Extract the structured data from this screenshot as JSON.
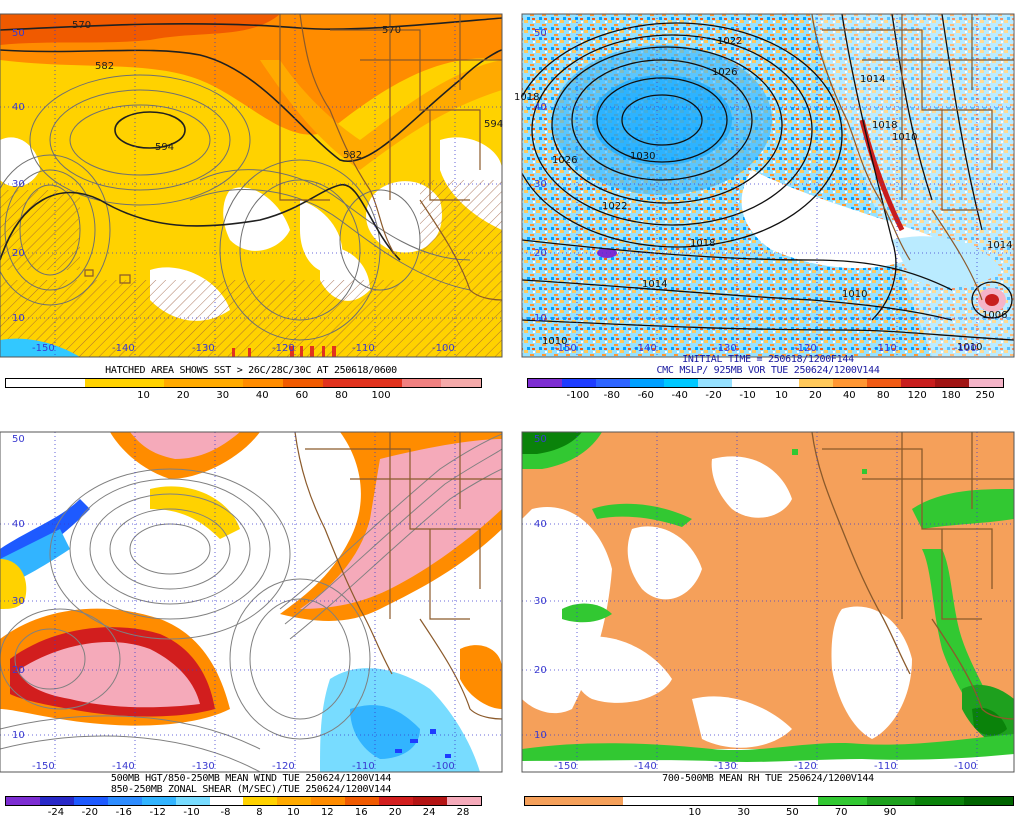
{
  "panels": [
    {
      "id": "sst-height",
      "caption_lines": [
        "HATCHED AREA SHOWS SST > 26C/28C/30C AT 250618/0600"
      ],
      "caption_color": "#000000",
      "scale_labels": [
        "10",
        "20",
        "30",
        "40",
        "60",
        "80",
        "100"
      ],
      "scale_colors": [
        "#ffffff",
        "#ffffff",
        "#ffd200",
        "#ffd200",
        "#ffaa00",
        "#ffaa00",
        "#ff8c00",
        "#f05a00",
        "#e1321e",
        "#e1321e",
        "#f08080",
        "#f5aaaa"
      ],
      "lat_labels": [
        "50",
        "40",
        "30",
        "20",
        "10"
      ],
      "lon_labels": [
        "-150",
        "-140",
        "-130",
        "-120",
        "-110",
        "-100"
      ],
      "contour_labels": [
        "570",
        "582",
        "594",
        "582",
        "570",
        "594",
        "582"
      ]
    },
    {
      "id": "mslp-vort",
      "caption_lines": [
        "INITIAL TIME = 250618/1200F144",
        "CMC MSLP/ 925MB VOR TUE 250624/1200V144"
      ],
      "caption_color": "#1a1aa0",
      "scale_labels": [
        "-100",
        "-80",
        "-60",
        "-40",
        "-20",
        "-10",
        "10",
        "20",
        "40",
        "80",
        "120",
        "180",
        "250"
      ],
      "scale_colors": [
        "#7d2dd2",
        "#1e3cff",
        "#2d64ff",
        "#00a0ff",
        "#00c8ff",
        "#96e1ff",
        "#ffffff",
        "#ffffff",
        "#ffc85a",
        "#ff9632",
        "#f05a14",
        "#c81e1e",
        "#a01414",
        "#f5b4c8"
      ],
      "lat_labels": [
        "50",
        "40",
        "30",
        "20",
        "10"
      ],
      "lon_labels": [
        "-150",
        "-140",
        "-130",
        "-120",
        "-110",
        "-100"
      ],
      "contour_labels": [
        "1022",
        "1026",
        "1030",
        "1026",
        "1022",
        "1018",
        "1014",
        "1010",
        "1014",
        "1018",
        "1010",
        "1006",
        "1014",
        "1010",
        "1010",
        "1018"
      ]
    },
    {
      "id": "zonal-shear",
      "caption_lines": [
        "500MB HGT/850-250MB MEAN WIND TUE 250624/1200V144",
        "850-250MB ZONAL SHEAR (M/SEC)/TUE 250624/1200V144"
      ],
      "caption_color": "#000000",
      "scale_labels": [
        "-24",
        "-20",
        "-16",
        "-12",
        "-10",
        "-8",
        "8",
        "10",
        "12",
        "16",
        "20",
        "24",
        "28"
      ],
      "scale_colors": [
        "#7d2dd2",
        "#2828c8",
        "#1e5aff",
        "#2d8cff",
        "#32b4ff",
        "#78dcff",
        "#ffffff",
        "#ffd200",
        "#ffaa00",
        "#ff8c00",
        "#f05a00",
        "#d21e1e",
        "#b41414",
        "#f5aaba"
      ],
      "lat_labels": [
        "50",
        "40",
        "30",
        "20",
        "10"
      ],
      "lon_labels": [
        "-150",
        "-140",
        "-130",
        "-120",
        "-110",
        "-100"
      ],
      "contour_labels": []
    },
    {
      "id": "mean-rh",
      "caption_lines": [
        "700-500MB MEAN RH TUE 250624/1200V144"
      ],
      "caption_color": "#000000",
      "scale_labels": [
        "10",
        "30",
        "50",
        "70",
        "90"
      ],
      "scale_colors": [
        "#f5a05a",
        "#f5a05a",
        "#ffffff",
        "#ffffff",
        "#ffffff",
        "#ffffff",
        "#32c832",
        "#1ea01e",
        "#0a820a",
        "#006400"
      ],
      "lat_labels": [
        "50",
        "40",
        "30",
        "20",
        "10"
      ],
      "lon_labels": [
        "-150",
        "-140",
        "-130",
        "-120",
        "-110",
        "-100"
      ],
      "contour_labels": []
    }
  ]
}
